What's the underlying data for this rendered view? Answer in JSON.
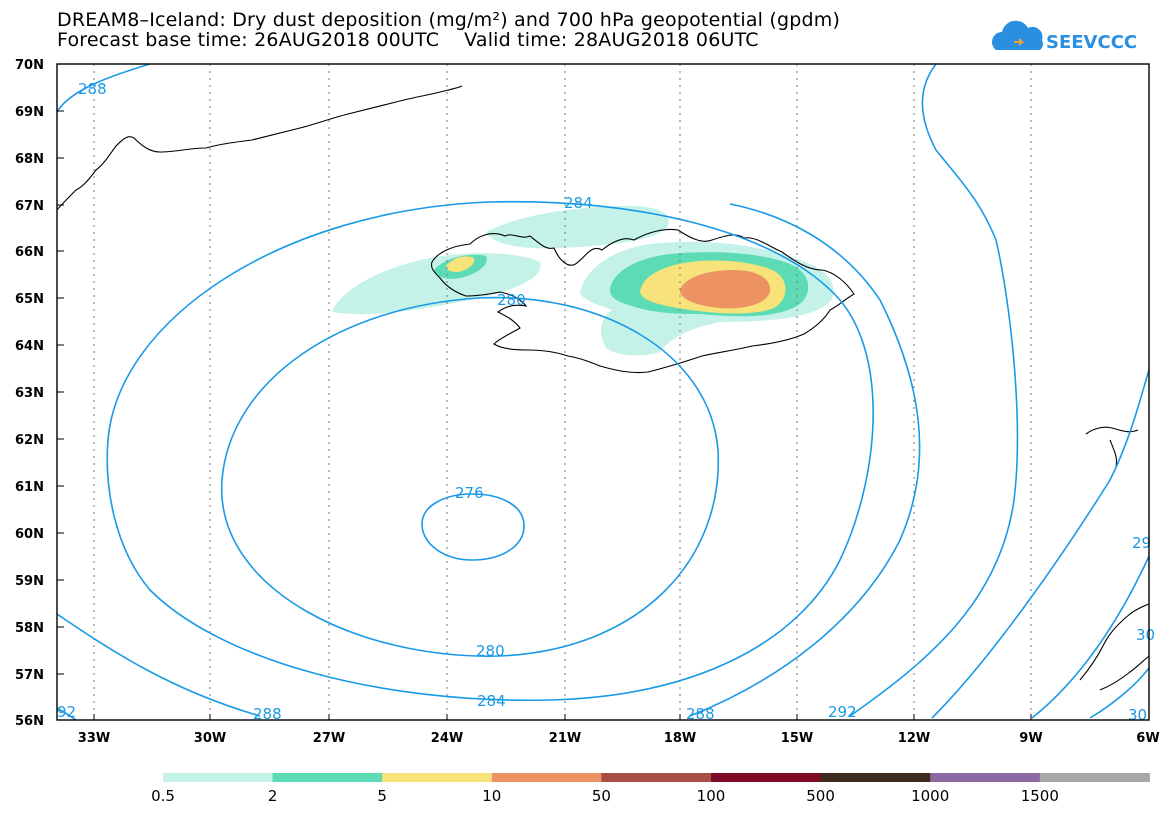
{
  "header": {
    "title_line1": "DREAM8–Iceland: Dry dust deposition (mg/m²) and 700 hPa geopotential (gpdm)",
    "title_line2": "Forecast base time: 26AUG2018 00UTC    Valid time: 28AUG2018 06UTC"
  },
  "logo": {
    "text": "SEEVCCC",
    "icon": "cloud-icon",
    "color": "#2a8fe0"
  },
  "map": {
    "lat_labels": [
      "70N",
      "69N",
      "68N",
      "67N",
      "66N",
      "65N",
      "64N",
      "63N",
      "62N",
      "61N",
      "60N",
      "59N",
      "58N",
      "57N",
      "56N"
    ],
    "lon_labels": [
      "33W",
      "30W",
      "27W",
      "24W",
      "21W",
      "18W",
      "15W",
      "12W",
      "9W",
      "6W"
    ],
    "contour_color": "#1a9ae6",
    "contour_labels": [
      {
        "text": "288"
      },
      {
        "text": "284"
      },
      {
        "text": "280"
      },
      {
        "text": "276"
      },
      {
        "text": "280"
      },
      {
        "text": "284"
      },
      {
        "text": "288"
      },
      {
        "text": "288"
      },
      {
        "text": "292"
      },
      {
        "text": "92"
      },
      {
        "text": "29"
      },
      {
        "text": "30"
      },
      {
        "text": "30"
      }
    ]
  },
  "colorbar": {
    "labels": [
      "0.5",
      "2",
      "5",
      "10",
      "50",
      "100",
      "500",
      "1000",
      "1500"
    ],
    "colors": [
      "#c5f2e8",
      "#5ddbb5",
      "#f7e37a",
      "#ec9263",
      "#a74e45",
      "#7e0c29",
      "#3f2b1e",
      "#8a6aa0",
      "#a7a7a7"
    ]
  }
}
